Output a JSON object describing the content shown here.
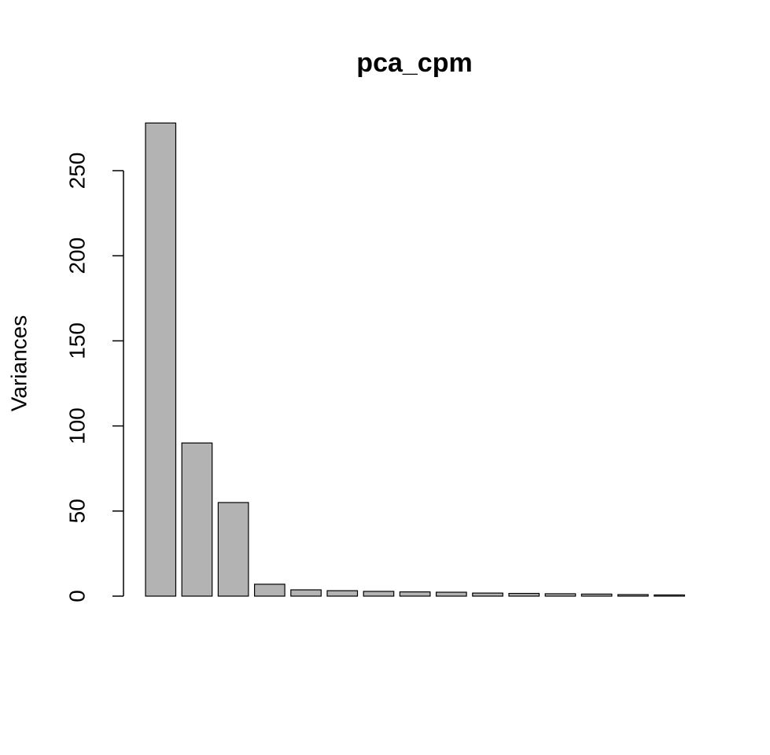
{
  "chart_data": {
    "type": "bar",
    "title": "pca_cpm",
    "y_label": "Variances",
    "categories": [
      null,
      null,
      null,
      null,
      null,
      null,
      null,
      null,
      null,
      null,
      null,
      null,
      null,
      null,
      null
    ],
    "values": [
      278,
      90,
      55,
      7,
      3.7,
      3.2,
      2.8,
      2.5,
      2.3,
      1.8,
      1.6,
      1.4,
      1.2,
      0.9,
      0.7
    ],
    "color": "#b3b3b3",
    "ylim": [
      0,
      289
    ],
    "yticks": [
      0,
      50,
      100,
      150,
      200,
      250
    ],
    "grid": false
  }
}
